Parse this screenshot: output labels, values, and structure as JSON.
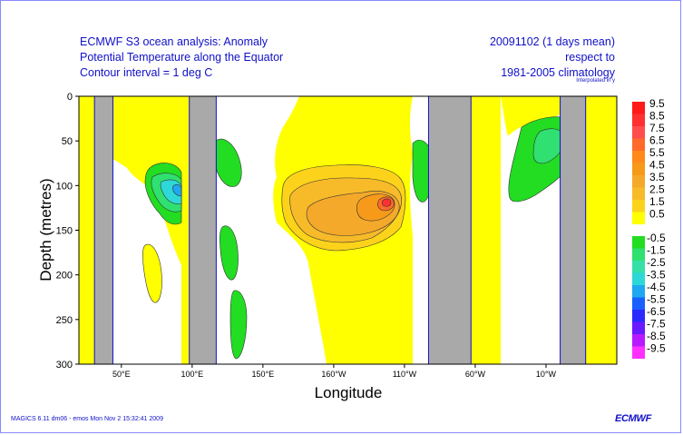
{
  "header": {
    "left_lines": [
      "ECMWF S3 ocean analysis: Anomaly",
      "Potential Temperature along the Equator",
      "Contour interval = 1 deg C"
    ],
    "right_lines": [
      "20091102 (1 days mean)",
      "respect to",
      "1981-2005 climatology"
    ],
    "interp_note": "Interpolated in y"
  },
  "footer": {
    "left": "MAGICS 6.11 dm06 - emos Mon Nov  2 15:32:41 2009",
    "logo": "ECMWF"
  },
  "chart_data": {
    "type": "heatmap",
    "title": "ECMWF S3 ocean analysis: Anomaly — Potential Temperature along the Equator",
    "xlabel": "Longitude",
    "ylabel": "Depth (metres)",
    "x_ticks": [
      "50°E",
      "100°E",
      "150°E",
      "160°W",
      "110°W",
      "60°W",
      "10°W"
    ],
    "y_ticks": [
      "0",
      "50",
      "100",
      "150",
      "200",
      "250",
      "300"
    ],
    "ylim": [
      300,
      0
    ],
    "contour_interval": 1,
    "grid": false,
    "land_masks_lon_deg": [
      [
        31,
        44
      ],
      [
        98,
        117
      ],
      [
        267,
        297
      ],
      [
        360,
        378
      ]
    ],
    "colorbar_positive": [
      {
        "label": "9.5",
        "color": "#ff1a1a"
      },
      {
        "label": "8.5",
        "color": "#ff3030"
      },
      {
        "label": "7.5",
        "color": "#ff4d4d"
      },
      {
        "label": "6.5",
        "color": "#ff6a2a"
      },
      {
        "label": "5.5",
        "color": "#ff8a1a"
      },
      {
        "label": "4.5",
        "color": "#f79a1a"
      },
      {
        "label": "3.5",
        "color": "#f5a92a"
      },
      {
        "label": "2.5",
        "color": "#f7bb2a"
      },
      {
        "label": "1.5",
        "color": "#fcd31a"
      },
      {
        "label": "0.5",
        "color": "#ffff00"
      }
    ],
    "colorbar_negative": [
      {
        "label": "-0.5",
        "color": "#22dd22"
      },
      {
        "label": "-1.5",
        "color": "#30e070"
      },
      {
        "label": "-2.5",
        "color": "#36e0a6"
      },
      {
        "label": "-3.5",
        "color": "#2ed8d8"
      },
      {
        "label": "-4.5",
        "color": "#1fa8ef"
      },
      {
        "label": "-5.5",
        "color": "#1a60ff"
      },
      {
        "label": "-6.5",
        "color": "#2a2aff"
      },
      {
        "label": "-7.5",
        "color": "#6a1aff"
      },
      {
        "label": "-8.5",
        "color": "#b81aff"
      },
      {
        "label": "-9.5",
        "color": "#ff30ff"
      }
    ]
  }
}
